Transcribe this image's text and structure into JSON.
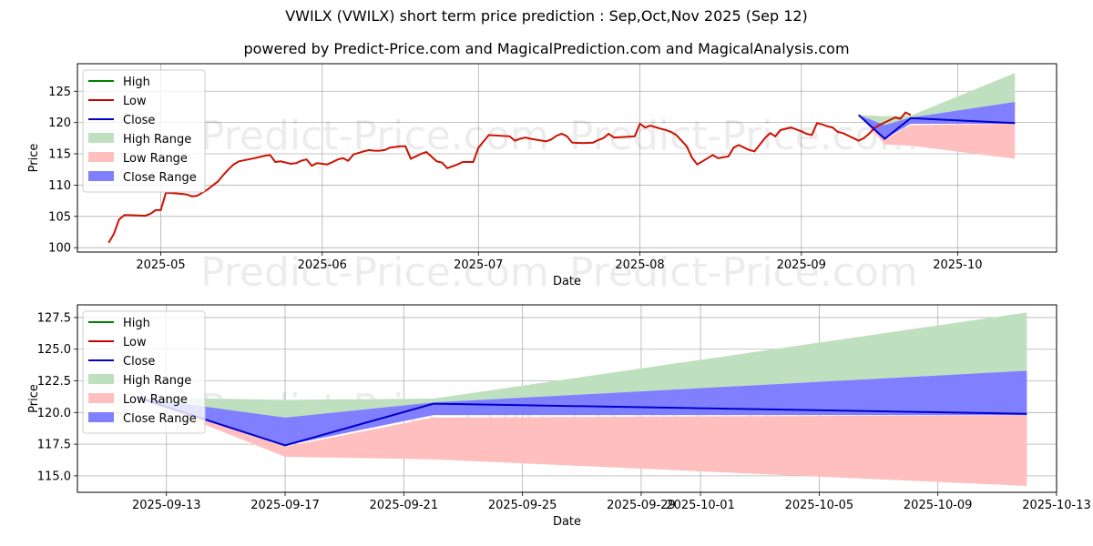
{
  "title": "VWILX (VWILX) short term price prediction : Sep,Oct,Nov 2025 (Sep 12)",
  "subtitle": "powered by Predict-Price.com and MagicalPrediction.com and MagicalAnalysis.com",
  "watermark": "Predict-Price.com",
  "colors": {
    "high": "#008000",
    "low": "#d62728",
    "close": "#0000cc",
    "high_range": "#bfe0bf",
    "low_range": "#ffbfbf",
    "close_range": "#8080ff",
    "grid": "#b0b0b0"
  },
  "legend": {
    "placement": "upper-left",
    "items": [
      {
        "label": "High",
        "kind": "line",
        "color": "#008000"
      },
      {
        "label": "Low",
        "kind": "line",
        "color": "#cc0000"
      },
      {
        "label": "Close",
        "kind": "line",
        "color": "#0000cc"
      },
      {
        "label": "High Range",
        "kind": "patch",
        "color": "#bfe0bf"
      },
      {
        "label": "Low Range",
        "kind": "patch",
        "color": "#ffbfbf"
      },
      {
        "label": "Close Range",
        "kind": "patch",
        "color": "#8080ff"
      }
    ]
  },
  "chart_data": [
    {
      "type": "line",
      "panel": "top",
      "xlabel": "Date",
      "ylabel": "Price",
      "xlim": [
        "2025-04-15",
        "2025-10-20"
      ],
      "ylim": [
        99.3,
        129.4
      ],
      "grid": true,
      "xticks": [
        {
          "date": "2025-05-01",
          "label": "2025-05"
        },
        {
          "date": "2025-06-01",
          "label": "2025-06"
        },
        {
          "date": "2025-07-01",
          "label": "2025-07"
        },
        {
          "date": "2025-08-01",
          "label": "2025-08"
        },
        {
          "date": "2025-09-01",
          "label": "2025-09"
        },
        {
          "date": "2025-10-01",
          "label": "2025-10"
        }
      ],
      "yticks": [
        100,
        105,
        110,
        115,
        120,
        125
      ],
      "history": [
        [
          "2025-04-21",
          100.8
        ],
        [
          "2025-04-22",
          102.2
        ],
        [
          "2025-04-23",
          104.5
        ],
        [
          "2025-04-24",
          105.2
        ],
        [
          "2025-04-25",
          105.2
        ],
        [
          "2025-04-28",
          105.1
        ],
        [
          "2025-04-29",
          105.4
        ],
        [
          "2025-04-30",
          106.0
        ],
        [
          "2025-05-01",
          106.0
        ],
        [
          "2025-05-02",
          108.8
        ],
        [
          "2025-05-05",
          108.6
        ],
        [
          "2025-05-06",
          108.5
        ],
        [
          "2025-05-07",
          108.2
        ],
        [
          "2025-05-08",
          108.3
        ],
        [
          "2025-05-09",
          108.8
        ],
        [
          "2025-05-10",
          109.3
        ],
        [
          "2025-05-12",
          110.6
        ],
        [
          "2025-05-13",
          111.6
        ],
        [
          "2025-05-14",
          112.5
        ],
        [
          "2025-05-15",
          113.3
        ],
        [
          "2025-05-16",
          113.8
        ],
        [
          "2025-05-19",
          114.3
        ],
        [
          "2025-05-20",
          114.5
        ],
        [
          "2025-05-21",
          114.7
        ],
        [
          "2025-05-22",
          114.8
        ],
        [
          "2025-05-23",
          113.7
        ],
        [
          "2025-05-24",
          113.8
        ],
        [
          "2025-05-26",
          113.4
        ],
        [
          "2025-05-27",
          113.5
        ],
        [
          "2025-05-28",
          113.9
        ],
        [
          "2025-05-29",
          114.1
        ],
        [
          "2025-05-30",
          113.1
        ],
        [
          "2025-05-31",
          113.5
        ],
        [
          "2025-06-02",
          113.3
        ],
        [
          "2025-06-03",
          113.7
        ],
        [
          "2025-06-04",
          114.1
        ],
        [
          "2025-06-05",
          114.3
        ],
        [
          "2025-06-06",
          113.9
        ],
        [
          "2025-06-07",
          114.9
        ],
        [
          "2025-06-09",
          115.4
        ],
        [
          "2025-06-10",
          115.6
        ],
        [
          "2025-06-11",
          115.5
        ],
        [
          "2025-06-12",
          115.5
        ],
        [
          "2025-06-13",
          115.6
        ],
        [
          "2025-06-14",
          116.0
        ],
        [
          "2025-06-16",
          116.2
        ],
        [
          "2025-06-17",
          116.2
        ],
        [
          "2025-06-18",
          114.2
        ],
        [
          "2025-06-19",
          114.6
        ],
        [
          "2025-06-20",
          115.0
        ],
        [
          "2025-06-21",
          115.3
        ],
        [
          "2025-06-23",
          113.8
        ],
        [
          "2025-06-24",
          113.6
        ],
        [
          "2025-06-25",
          112.7
        ],
        [
          "2025-06-27",
          113.3
        ],
        [
          "2025-06-28",
          113.7
        ],
        [
          "2025-06-30",
          113.7
        ],
        [
          "2025-07-01",
          116.0
        ],
        [
          "2025-07-02",
          117.0
        ],
        [
          "2025-07-03",
          118.0
        ],
        [
          "2025-07-07",
          117.8
        ],
        [
          "2025-07-08",
          117.1
        ],
        [
          "2025-07-09",
          117.4
        ],
        [
          "2025-07-10",
          117.6
        ],
        [
          "2025-07-11",
          117.4
        ],
        [
          "2025-07-14",
          117.0
        ],
        [
          "2025-07-15",
          117.3
        ],
        [
          "2025-07-16",
          117.9
        ],
        [
          "2025-07-17",
          118.2
        ],
        [
          "2025-07-18",
          117.8
        ],
        [
          "2025-07-19",
          116.8
        ],
        [
          "2025-07-21",
          116.7
        ],
        [
          "2025-07-23",
          116.8
        ],
        [
          "2025-07-24",
          117.2
        ],
        [
          "2025-07-25",
          117.5
        ],
        [
          "2025-07-26",
          118.2
        ],
        [
          "2025-07-27",
          117.6
        ],
        [
          "2025-07-29",
          117.7
        ],
        [
          "2025-07-31",
          117.8
        ],
        [
          "2025-08-01",
          119.8
        ],
        [
          "2025-08-02",
          119.2
        ],
        [
          "2025-08-03",
          119.5
        ],
        [
          "2025-08-05",
          119.0
        ],
        [
          "2025-08-06",
          118.8
        ],
        [
          "2025-08-07",
          118.5
        ],
        [
          "2025-08-08",
          118.0
        ],
        [
          "2025-08-10",
          116.2
        ],
        [
          "2025-08-11",
          114.4
        ],
        [
          "2025-08-12",
          113.3
        ],
        [
          "2025-08-13",
          113.8
        ],
        [
          "2025-08-14",
          114.3
        ],
        [
          "2025-08-15",
          114.8
        ],
        [
          "2025-08-16",
          114.3
        ],
        [
          "2025-08-18",
          114.6
        ],
        [
          "2025-08-19",
          116.0
        ],
        [
          "2025-08-20",
          116.4
        ],
        [
          "2025-08-21",
          116.0
        ],
        [
          "2025-08-22",
          115.6
        ],
        [
          "2025-08-23",
          115.4
        ],
        [
          "2025-08-25",
          117.5
        ],
        [
          "2025-08-26",
          118.3
        ],
        [
          "2025-08-27",
          117.8
        ],
        [
          "2025-08-28",
          118.8
        ],
        [
          "2025-08-29",
          119.0
        ],
        [
          "2025-08-30",
          119.2
        ],
        [
          "2025-09-01",
          118.6
        ],
        [
          "2025-09-02",
          118.2
        ],
        [
          "2025-09-03",
          118.0
        ],
        [
          "2025-09-04",
          119.9
        ],
        [
          "2025-09-05",
          119.7
        ],
        [
          "2025-09-06",
          119.4
        ],
        [
          "2025-09-07",
          119.2
        ],
        [
          "2025-09-08",
          118.5
        ],
        [
          "2025-09-09",
          118.3
        ],
        [
          "2025-09-10",
          117.9
        ],
        [
          "2025-09-11",
          117.5
        ],
        [
          "2025-09-12",
          117.1
        ],
        [
          "2025-09-13",
          117.5
        ],
        [
          "2025-09-14",
          118.2
        ],
        [
          "2025-09-15",
          119.1
        ],
        [
          "2025-09-16",
          119.6
        ],
        [
          "2025-09-17",
          120.0
        ],
        [
          "2025-09-18",
          120.4
        ],
        [
          "2025-09-19",
          120.8
        ],
        [
          "2025-09-20",
          120.6
        ],
        [
          "2025-09-21",
          121.6
        ],
        [
          "2025-09-22",
          121.2
        ]
      ]
    },
    {
      "type": "area",
      "panel": "bottom",
      "xlabel": "Date",
      "ylabel": "Price",
      "xlim": [
        "2025-09-10",
        "2025-10-13"
      ],
      "ylim": [
        113.7,
        128.5
      ],
      "grid": true,
      "xticks": [
        "2025-09-13",
        "2025-09-17",
        "2025-09-21",
        "2025-09-25",
        "2025-09-29",
        "2025-10-01",
        "2025-10-05",
        "2025-10-09",
        "2025-10-13"
      ],
      "yticks": [
        115.0,
        117.5,
        120.0,
        122.5,
        125.0,
        127.5
      ],
      "x": [
        "2025-09-12",
        "2025-09-17",
        "2025-09-22",
        "2025-10-12"
      ],
      "series": [
        {
          "name": "High",
          "values": [
            null,
            null,
            null,
            null
          ]
        },
        {
          "name": "Low",
          "values": [
            null,
            null,
            null,
            null
          ]
        },
        {
          "name": "Close",
          "values": [
            121.2,
            117.4,
            120.7,
            119.9
          ]
        },
        {
          "name": "High Range",
          "lower": [
            121.2,
            119.5,
            120.8,
            123.3
          ],
          "upper": [
            121.2,
            121.0,
            121.1,
            127.9
          ]
        },
        {
          "name": "Low Range",
          "lower": [
            121.2,
            116.5,
            116.3,
            114.2
          ],
          "upper": [
            121.2,
            117.3,
            119.6,
            119.8
          ]
        },
        {
          "name": "Close Range",
          "lower": [
            121.2,
            117.4,
            119.8,
            119.8
          ],
          "upper": [
            121.2,
            119.6,
            120.8,
            123.3
          ]
        }
      ]
    }
  ]
}
